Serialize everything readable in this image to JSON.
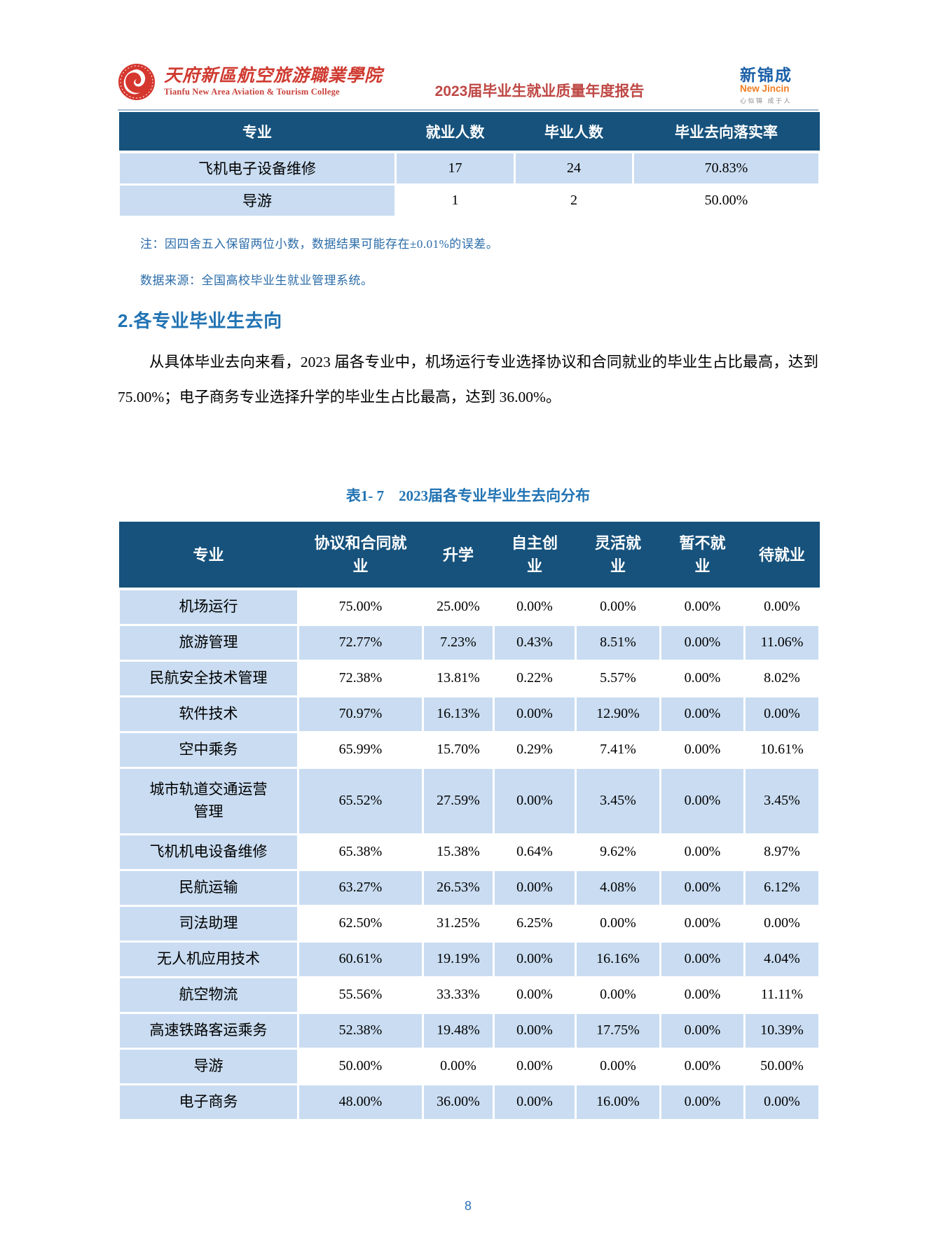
{
  "header": {
    "college": {
      "name_cn": "天府新區航空旅游職業學院",
      "name_en": "Tianfu New Area Aviation & Tourism College"
    },
    "report_title": "2023届毕业生就业质量年度报告",
    "brand": {
      "name_cn": "新锦成",
      "name_en": "New Jincin",
      "tagline": "心似锦 成于人"
    }
  },
  "table1": {
    "columns": [
      "专业",
      "就业人数",
      "毕业人数",
      "毕业去向落实率"
    ],
    "rows": [
      [
        "飞机电子设备维修",
        "17",
        "24",
        "70.83%"
      ],
      [
        "导游",
        "1",
        "2",
        "50.00%"
      ]
    ]
  },
  "notes": {
    "rounding": "注：因四舍五入保留两位小数，数据结果可能存在±0.01%的误差。",
    "source": "数据来源：全国高校毕业生就业管理系统。"
  },
  "section": {
    "heading": "2.各专业毕业生去向",
    "paragraph": "从具体毕业去向来看，2023 届各专业中，机场运行专业选择协议和合同就业的毕业生占比最高，达到 75.00%；电子商务专业选择升学的毕业生占比最高，达到 36.00%。"
  },
  "table2": {
    "caption": "表1- 7　2023届各专业毕业生去向分布",
    "columns": [
      "专业",
      "协议和合同就业",
      "升学",
      "自主创业",
      "灵活就业",
      "暂不就业",
      "待就业"
    ],
    "rows": [
      [
        "机场运行",
        "75.00%",
        "25.00%",
        "0.00%",
        "0.00%",
        "0.00%",
        "0.00%"
      ],
      [
        "旅游管理",
        "72.77%",
        "7.23%",
        "0.43%",
        "8.51%",
        "0.00%",
        "11.06%"
      ],
      [
        "民航安全技术管理",
        "72.38%",
        "13.81%",
        "0.22%",
        "5.57%",
        "0.00%",
        "8.02%"
      ],
      [
        "软件技术",
        "70.97%",
        "16.13%",
        "0.00%",
        "12.90%",
        "0.00%",
        "0.00%"
      ],
      [
        "空中乘务",
        "65.99%",
        "15.70%",
        "0.29%",
        "7.41%",
        "0.00%",
        "10.61%"
      ],
      [
        "城市轨道交通运营管理",
        "65.52%",
        "27.59%",
        "0.00%",
        "3.45%",
        "0.00%",
        "3.45%"
      ],
      [
        "飞机机电设备维修",
        "65.38%",
        "15.38%",
        "0.64%",
        "9.62%",
        "0.00%",
        "8.97%"
      ],
      [
        "民航运输",
        "63.27%",
        "26.53%",
        "0.00%",
        "4.08%",
        "0.00%",
        "6.12%"
      ],
      [
        "司法助理",
        "62.50%",
        "31.25%",
        "6.25%",
        "0.00%",
        "0.00%",
        "0.00%"
      ],
      [
        "无人机应用技术",
        "60.61%",
        "19.19%",
        "0.00%",
        "16.16%",
        "0.00%",
        "4.04%"
      ],
      [
        "航空物流",
        "55.56%",
        "33.33%",
        "0.00%",
        "0.00%",
        "0.00%",
        "11.11%"
      ],
      [
        "高速铁路客运乘务",
        "52.38%",
        "19.48%",
        "0.00%",
        "17.75%",
        "0.00%",
        "10.39%"
      ],
      [
        "导游",
        "50.00%",
        "0.00%",
        "0.00%",
        "0.00%",
        "0.00%",
        "50.00%"
      ],
      [
        "电子商务",
        "48.00%",
        "36.00%",
        "0.00%",
        "16.00%",
        "0.00%",
        "0.00%"
      ]
    ]
  },
  "footer": {
    "page_number": "8"
  },
  "colors": {
    "table_header_navy": "#16527c",
    "cell_light_blue": "#c9dcf1",
    "accent_blue": "#2173b3",
    "note_blue": "#2b6ca8",
    "title_red": "#be4845",
    "college_red": "#cf3a30",
    "brand_blue": "#1a5fa8",
    "brand_orange": "#f07c1f"
  }
}
